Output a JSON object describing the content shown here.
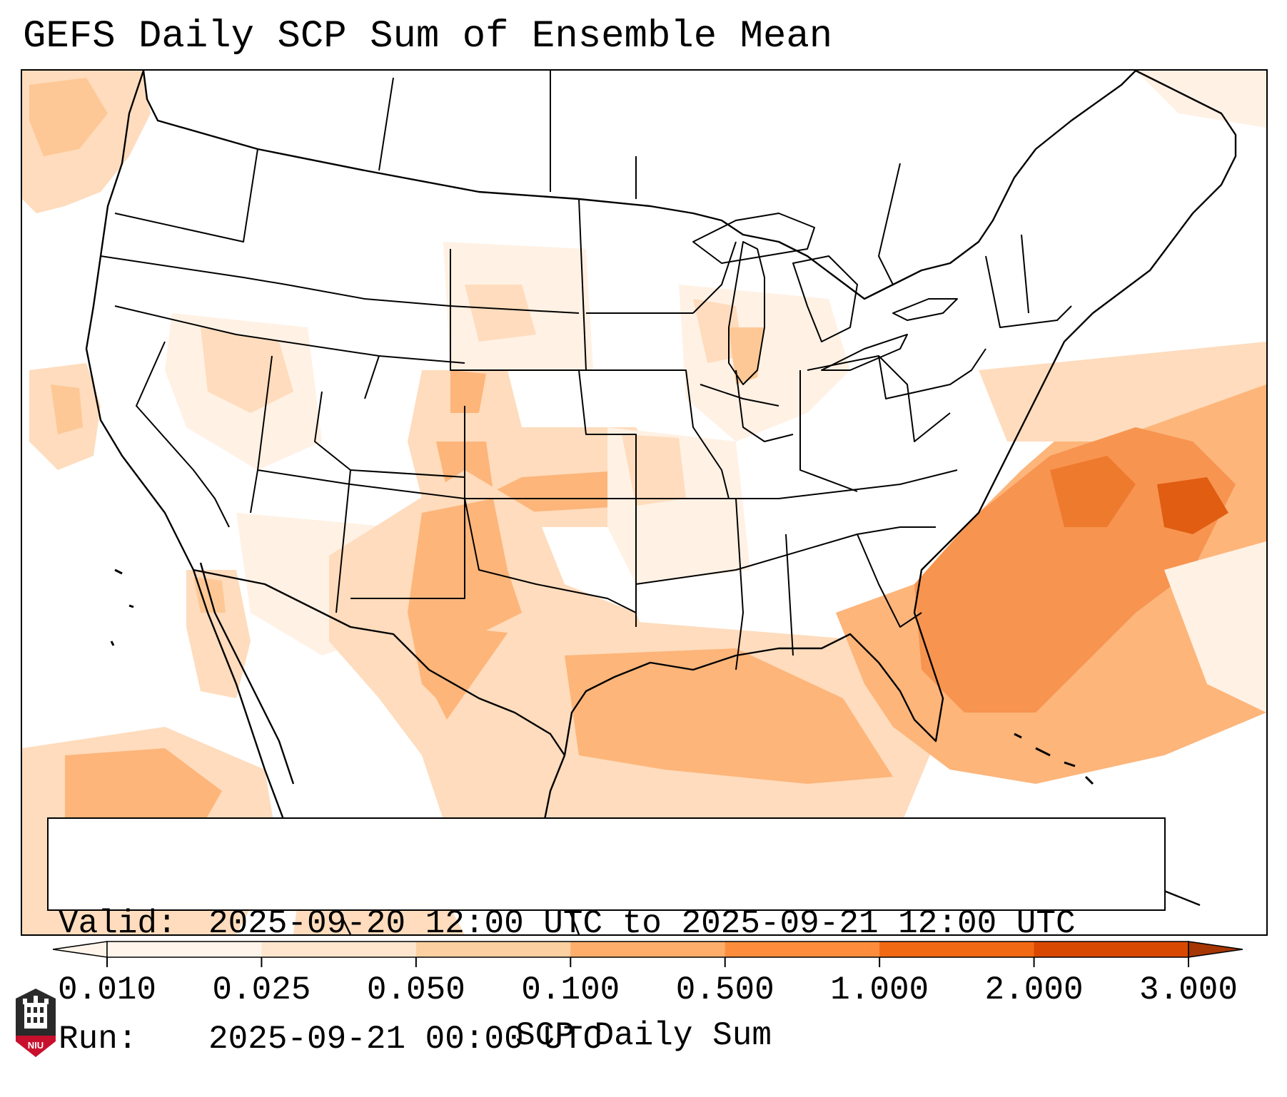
{
  "title": "GEFS Daily SCP Sum of Ensemble Mean",
  "valid": {
    "label": "Valid:",
    "value": "2025-09-20 12:00 UTC to 2025-09-21 12:00 UTC"
  },
  "run": {
    "label": "Run:",
    "value": "2025-09-21 00:00 UTC"
  },
  "colorbar": {
    "label": "SCP Daily Sum",
    "ticks": [
      "0.010",
      "0.025",
      "0.050",
      "0.100",
      "0.500",
      "1.000",
      "2.000",
      "3.000"
    ],
    "colors": [
      "#fff5eb",
      "#fee6ce",
      "#fdd0a2",
      "#fdae6b",
      "#fd8d3c",
      "#f16913",
      "#d94801",
      "#a63603"
    ],
    "extend": "both"
  },
  "logo": {
    "text": "NIU",
    "icon": "niu-building-logo-icon"
  },
  "map": {
    "region": "Contiguous United States",
    "field_colors": {
      "very_light": "#fff1e4",
      "light": "#fedcbd",
      "medium": "#fdb57a",
      "strong": "#f79450",
      "peak": "#ee7a2e",
      "max": "#e05d12"
    }
  }
}
